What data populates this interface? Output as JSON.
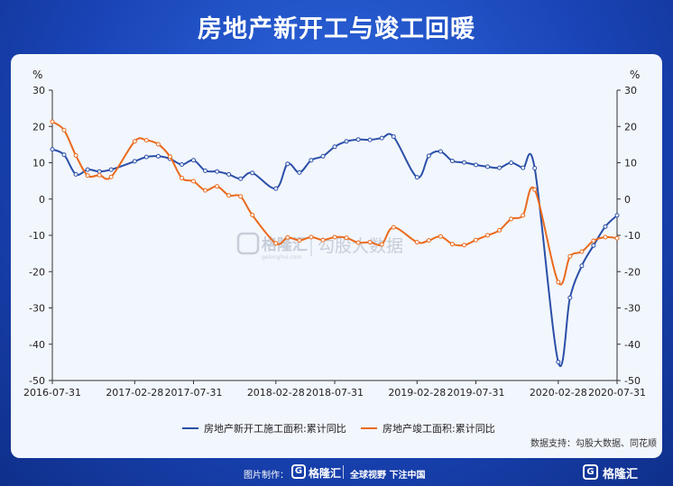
{
  "title": "房地产新开工与竣工回暖",
  "watermark": "格隆汇",
  "watermark_url": "gelonghui.com",
  "watermark_partner": "勾股大数据",
  "source": "数据支持：勾股大数据、同花顺",
  "footer": {
    "credit": "图片制作：",
    "logo_text": "格隆汇",
    "logo_glyph": "G",
    "slogan": "全球视野 下注中国",
    "corner_logo": "格隆汇"
  },
  "colors": {
    "new_start": "#2a4fa8",
    "completion": "#ea6a1d"
  },
  "chart_data": {
    "type": "line",
    "y_unit_left": "%",
    "y_unit_right": "%",
    "ylim": [
      -50,
      30
    ],
    "yticks": [
      30,
      20,
      10,
      0,
      -10,
      -20,
      -30,
      -40,
      -50
    ],
    "xticks": [
      "2016-07-31",
      "2017-02-28",
      "2017-07-31",
      "2018-02-28",
      "2018-07-31",
      "2019-02-28",
      "2019-07-31",
      "2020-02-28",
      "2020-07-31"
    ],
    "x": [
      "2016-07",
      "2016-08",
      "2016-09",
      "2016-10",
      "2016-11",
      "2016-12",
      "2017-02",
      "2017-03",
      "2017-04",
      "2017-05",
      "2017-06",
      "2017-07",
      "2017-08",
      "2017-09",
      "2017-10",
      "2017-11",
      "2017-12",
      "2018-02",
      "2018-03",
      "2018-04",
      "2018-05",
      "2018-06",
      "2018-07",
      "2018-08",
      "2018-09",
      "2018-10",
      "2018-11",
      "2018-12",
      "2019-02",
      "2019-03",
      "2019-04",
      "2019-05",
      "2019-06",
      "2019-07",
      "2019-08",
      "2019-09",
      "2019-10",
      "2019-11",
      "2019-12",
      "2020-02",
      "2020-03",
      "2020-04",
      "2020-05",
      "2020-06",
      "2020-07"
    ],
    "series": [
      {
        "name": "房地产新开工施工面积:累计同比",
        "color": "#2a4fa8",
        "values": [
          13.7,
          12.2,
          6.8,
          8.1,
          7.6,
          8.1,
          10.4,
          11.6,
          11.8,
          11.1,
          9.5,
          10.7,
          7.8,
          7.6,
          6.8,
          5.6,
          7.2,
          2.9,
          9.7,
          7.3,
          10.7,
          11.8,
          14.4,
          15.9,
          16.4,
          16.3,
          16.8,
          17.2,
          6.0,
          11.9,
          13.1,
          10.5,
          10.1,
          9.4,
          8.9,
          8.6,
          10.0,
          8.6,
          8.5,
          -44.9,
          -27.2,
          -18.4,
          -12.8,
          -7.6,
          -4.5
        ]
      },
      {
        "name": "房地产竣工面积:累计同比",
        "color": "#ea6a1d",
        "values": [
          21.3,
          19.0,
          12.0,
          6.5,
          6.6,
          6.1,
          15.9,
          16.2,
          15.1,
          11.7,
          5.8,
          4.9,
          2.4,
          3.5,
          1.0,
          0.7,
          -4.4,
          -12.2,
          -10.6,
          -11.4,
          -10.5,
          -11.3,
          -10.5,
          -10.7,
          -12.0,
          -11.9,
          -12.5,
          -7.8,
          -11.9,
          -11.4,
          -10.3,
          -12.4,
          -12.7,
          -11.3,
          -10.0,
          -8.6,
          -5.5,
          -4.5,
          2.6,
          -22.9,
          -15.8,
          -14.5,
          -11.5,
          -10.5,
          -10.8
        ]
      }
    ]
  }
}
